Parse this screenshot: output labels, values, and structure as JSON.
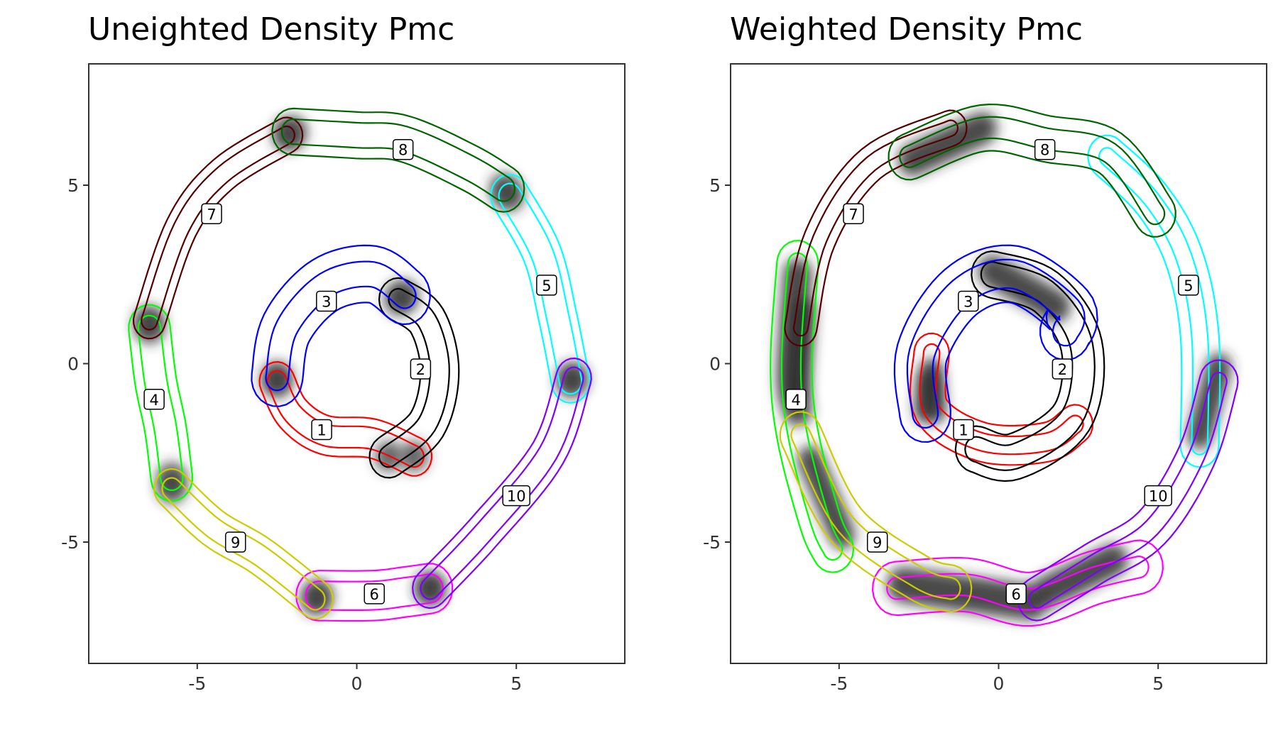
{
  "chart_data": [
    {
      "type": "contour",
      "title": "Uneighted Density Pmc",
      "xlabel": "",
      "ylabel": "",
      "xlim": [
        -8.4,
        8.4
      ],
      "ylim": [
        -8.4,
        8.4
      ],
      "x_ticks": [
        -5,
        0,
        5
      ],
      "y_ticks": [
        -5,
        0,
        5
      ],
      "x_tick_labels": [
        "-5",
        "0",
        "5"
      ],
      "y_tick_labels": [
        "-5",
        "0",
        "5"
      ],
      "grid": false,
      "components": [
        {
          "label": "1",
          "color": "#ff0000",
          "path": [
            [
              -2.5,
              -0.5
            ],
            [
              -2.0,
              -1.4
            ],
            [
              -1.0,
              -2.0
            ],
            [
              0.5,
              -2.1
            ],
            [
              1.8,
              -2.6
            ]
          ],
          "width_outer": 0.55,
          "width_inner": 0.3,
          "label_pos": [
            -1.1,
            -1.85
          ],
          "weighted_blob": null
        },
        {
          "label": "2",
          "color": "#000000",
          "path": [
            [
              1.3,
              1.8
            ],
            [
              2.2,
              1.2
            ],
            [
              2.6,
              -0.2
            ],
            [
              2.2,
              -1.7
            ],
            [
              1.0,
              -2.6
            ]
          ],
          "width_outer": 0.6,
          "width_inner": 0.3,
          "label_pos": [
            2.0,
            -0.15
          ],
          "weighted_blob": null
        },
        {
          "label": "3",
          "color": "#0000ff",
          "path": [
            [
              -2.5,
              -0.4
            ],
            [
              -2.2,
              1.0
            ],
            [
              -1.0,
              2.2
            ],
            [
              0.5,
              2.5
            ],
            [
              1.5,
              1.9
            ]
          ],
          "width_outer": 0.8,
          "width_inner": 0.35,
          "label_pos": [
            -0.95,
            1.75
          ],
          "weighted_blob": null
        },
        {
          "label": "4",
          "color": "#00ff00",
          "path": [
            [
              -6.5,
              1.0
            ],
            [
              -6.3,
              -0.5
            ],
            [
              -6.0,
              -1.8
            ],
            [
              -5.8,
              -3.2
            ]
          ],
          "width_outer": 0.65,
          "width_inner": 0.35,
          "label_pos": [
            -6.35,
            -1.0
          ],
          "weighted_blob": null
        },
        {
          "label": "5",
          "color": "#00ffff",
          "path": [
            [
              4.8,
              4.7
            ],
            [
              5.8,
              3.1
            ],
            [
              6.3,
              1.3
            ],
            [
              6.7,
              -0.5
            ]
          ],
          "width_outer": 0.6,
          "width_inner": 0.35,
          "label_pos": [
            5.95,
            2.2
          ],
          "weighted_blob": null
        },
        {
          "label": "6",
          "color": "#ff00ff",
          "path": [
            [
              -1.2,
              -6.5
            ],
            [
              0.5,
              -6.5
            ],
            [
              1.5,
              -6.4
            ],
            [
              2.3,
              -6.3
            ]
          ],
          "width_outer": 0.7,
          "width_inner": 0.4,
          "label_pos": [
            0.55,
            -6.45
          ],
          "weighted_blob": null
        },
        {
          "label": "7",
          "color": "#550000",
          "path": [
            [
              -6.5,
              1.2
            ],
            [
              -5.5,
              3.8
            ],
            [
              -4.2,
              5.3
            ],
            [
              -2.2,
              6.4
            ]
          ],
          "width_outer": 0.5,
          "width_inner": 0.25,
          "label_pos": [
            -4.55,
            4.2
          ],
          "weighted_blob": null
        },
        {
          "label": "8",
          "color": "#006400",
          "path": [
            [
              -2.0,
              6.5
            ],
            [
              0.0,
              6.4
            ],
            [
              1.5,
              6.3
            ],
            [
              3.5,
              5.5
            ],
            [
              4.6,
              4.9
            ]
          ],
          "width_outer": 0.65,
          "width_inner": 0.35,
          "label_pos": [
            1.45,
            6.0
          ],
          "weighted_blob": null
        },
        {
          "label": "9",
          "color": "#cccc00",
          "path": [
            [
              -5.8,
              -3.5
            ],
            [
              -4.5,
              -4.6
            ],
            [
              -3.0,
              -5.4
            ],
            [
              -1.3,
              -6.6
            ]
          ],
          "width_outer": 0.55,
          "width_inner": 0.3,
          "label_pos": [
            -3.8,
            -5.0
          ],
          "weighted_blob": null
        },
        {
          "label": "10",
          "color": "#7f00ff",
          "path": [
            [
              6.8,
              -0.4
            ],
            [
              6.0,
              -2.5
            ],
            [
              4.0,
              -4.7
            ],
            [
              2.3,
              -6.3
            ]
          ],
          "width_outer": 0.55,
          "width_inner": 0.3,
          "label_pos": [
            5.0,
            -3.7
          ],
          "weighted_blob": null
        }
      ]
    },
    {
      "type": "contour",
      "title": "Weighted Density Pmc",
      "xlabel": "",
      "ylabel": "",
      "xlim": [
        -8.4,
        8.4
      ],
      "ylim": [
        -8.4,
        8.4
      ],
      "x_ticks": [
        -5,
        0,
        5
      ],
      "y_ticks": [
        -5,
        0,
        5
      ],
      "x_tick_labels": [
        "-5",
        "0",
        "5"
      ],
      "y_tick_labels": [
        "-5",
        "0",
        "5"
      ],
      "grid": false,
      "components": [
        {
          "label": "1",
          "color": "#ff0000",
          "path": [
            [
              -2.1,
              0.3
            ],
            [
              -2.1,
              -1.3
            ],
            [
              -0.5,
              -2.2
            ],
            [
              1.5,
              -2.2
            ],
            [
              2.4,
              -1.7
            ]
          ],
          "width_outer": 0.55,
          "width_inner": 0.25,
          "label_pos": [
            -1.1,
            -1.85
          ],
          "weighted_blob": {
            "path": [
              [
                -2.1,
                -0.2
              ],
              [
                -2.0,
                -1.3
              ]
            ],
            "halfwidth": 0.35
          }
        },
        {
          "label": "2",
          "color": "#000000",
          "path": [
            [
              -0.2,
              2.5
            ],
            [
              1.5,
              2.0
            ],
            [
              2.6,
              0.5
            ],
            [
              2.3,
              -1.5
            ],
            [
              0.5,
              -2.6
            ],
            [
              -0.7,
              -2.4
            ]
          ],
          "width_outer": 0.65,
          "width_inner": 0.35,
          "label_pos": [
            2.0,
            -0.15
          ],
          "weighted_blob": {
            "path": [
              [
                -0.2,
                2.6
              ],
              [
                1.8,
                1.6
              ]
            ],
            "halfwidth": 0.45
          }
        },
        {
          "label": "3",
          "color": "#0000ff",
          "path": [
            [
              -2.3,
              -1.4
            ],
            [
              -2.4,
              0.3
            ],
            [
              -1.2,
              2.0
            ],
            [
              0.5,
              2.5
            ],
            [
              2.2,
              1.5
            ],
            [
              2.1,
              0.9
            ]
          ],
          "width_outer": 0.8,
          "width_inner": 0.4,
          "label_pos": [
            -0.95,
            1.75
          ],
          "weighted_blob": {
            "path": [
              [
                -2.3,
                -1.3
              ],
              [
                -2.2,
                -0.5
              ]
            ],
            "halfwidth": 0.35
          }
        },
        {
          "label": "4",
          "color": "#00ff00",
          "path": [
            [
              -6.3,
              2.8
            ],
            [
              -6.5,
              0.0
            ],
            [
              -6.3,
              -2.0
            ],
            [
              -5.6,
              -4.4
            ],
            [
              -5.2,
              -5.2
            ]
          ],
          "width_outer": 0.65,
          "width_inner": 0.3,
          "label_pos": [
            -6.35,
            -1.0
          ],
          "weighted_blob": {
            "path": [
              [
                -6.3,
                2.5
              ],
              [
                -6.5,
                -0.3
              ],
              [
                -6.3,
                -1.3
              ]
            ],
            "halfwidth": 0.45
          }
        },
        {
          "label": "5",
          "color": "#00ffff",
          "path": [
            [
              3.4,
              5.8
            ],
            [
              4.8,
              4.6
            ],
            [
              5.8,
              3.0
            ],
            [
              6.3,
              0.8
            ],
            [
              6.3,
              -2.3
            ]
          ],
          "width_outer": 0.6,
          "width_inner": 0.25,
          "label_pos": [
            5.95,
            2.2
          ],
          "weighted_blob": {
            "path": [
              [
                6.9,
                -0.1
              ],
              [
                6.3,
                -2.0
              ]
            ],
            "halfwidth": 0.4
          }
        },
        {
          "label": "6",
          "color": "#ff00ff",
          "path": [
            [
              -3.2,
              -6.3
            ],
            [
              -1.0,
              -6.2
            ],
            [
              1.0,
              -6.6
            ],
            [
              3.0,
              -6.0
            ],
            [
              4.4,
              -5.7
            ]
          ],
          "width_outer": 0.75,
          "width_inner": 0.3,
          "label_pos": [
            0.55,
            -6.45
          ],
          "weighted_blob": {
            "path": [
              [
                -3.0,
                -6.2
              ],
              [
                1.0,
                -6.7
              ]
            ],
            "halfwidth": 0.5
          }
        },
        {
          "label": "7",
          "color": "#550000",
          "path": [
            [
              -6.2,
              1.0
            ],
            [
              -5.6,
              3.5
            ],
            [
              -4.0,
              5.6
            ],
            [
              -1.5,
              6.6
            ]
          ],
          "width_outer": 0.5,
          "width_inner": 0.22,
          "label_pos": [
            -4.55,
            4.2
          ],
          "weighted_blob": {
            "path": [
              [
                -6.1,
                1.5
              ],
              [
                -6.3,
                -0.8
              ]
            ],
            "halfwidth": 0.35
          }
        },
        {
          "label": "8",
          "color": "#006400",
          "path": [
            [
              -2.8,
              5.8
            ],
            [
              -0.5,
              6.6
            ],
            [
              1.5,
              6.3
            ],
            [
              3.5,
              5.9
            ],
            [
              4.9,
              4.2
            ]
          ],
          "width_outer": 0.65,
          "width_inner": 0.3,
          "label_pos": [
            1.45,
            6.0
          ],
          "weighted_blob": {
            "path": [
              [
                -2.7,
                5.7
              ],
              [
                -0.5,
                6.6
              ]
            ],
            "halfwidth": 0.45
          }
        },
        {
          "label": "9",
          "color": "#cccc00",
          "path": [
            [
              -6.2,
              -2.0
            ],
            [
              -4.8,
              -4.5
            ],
            [
              -2.5,
              -6.0
            ],
            [
              -1.5,
              -6.3
            ]
          ],
          "width_outer": 0.65,
          "width_inner": 0.3,
          "label_pos": [
            -3.8,
            -5.0
          ],
          "weighted_blob": {
            "path": [
              [
                -5.9,
                -2.7
              ],
              [
                -4.9,
                -4.8
              ]
            ],
            "halfwidth": 0.4
          }
        },
        {
          "label": "10",
          "color": "#7f00ff",
          "path": [
            [
              6.9,
              -0.5
            ],
            [
              6.2,
              -2.6
            ],
            [
              4.8,
              -4.6
            ],
            [
              3.0,
              -5.6
            ],
            [
              1.2,
              -6.6
            ]
          ],
          "width_outer": 0.6,
          "width_inner": 0.25,
          "label_pos": [
            5.0,
            -3.7
          ],
          "weighted_blob": {
            "path": [
              [
                1.5,
                -6.4
              ],
              [
                3.6,
                -5.5
              ]
            ],
            "halfwidth": 0.45
          }
        }
      ]
    }
  ]
}
